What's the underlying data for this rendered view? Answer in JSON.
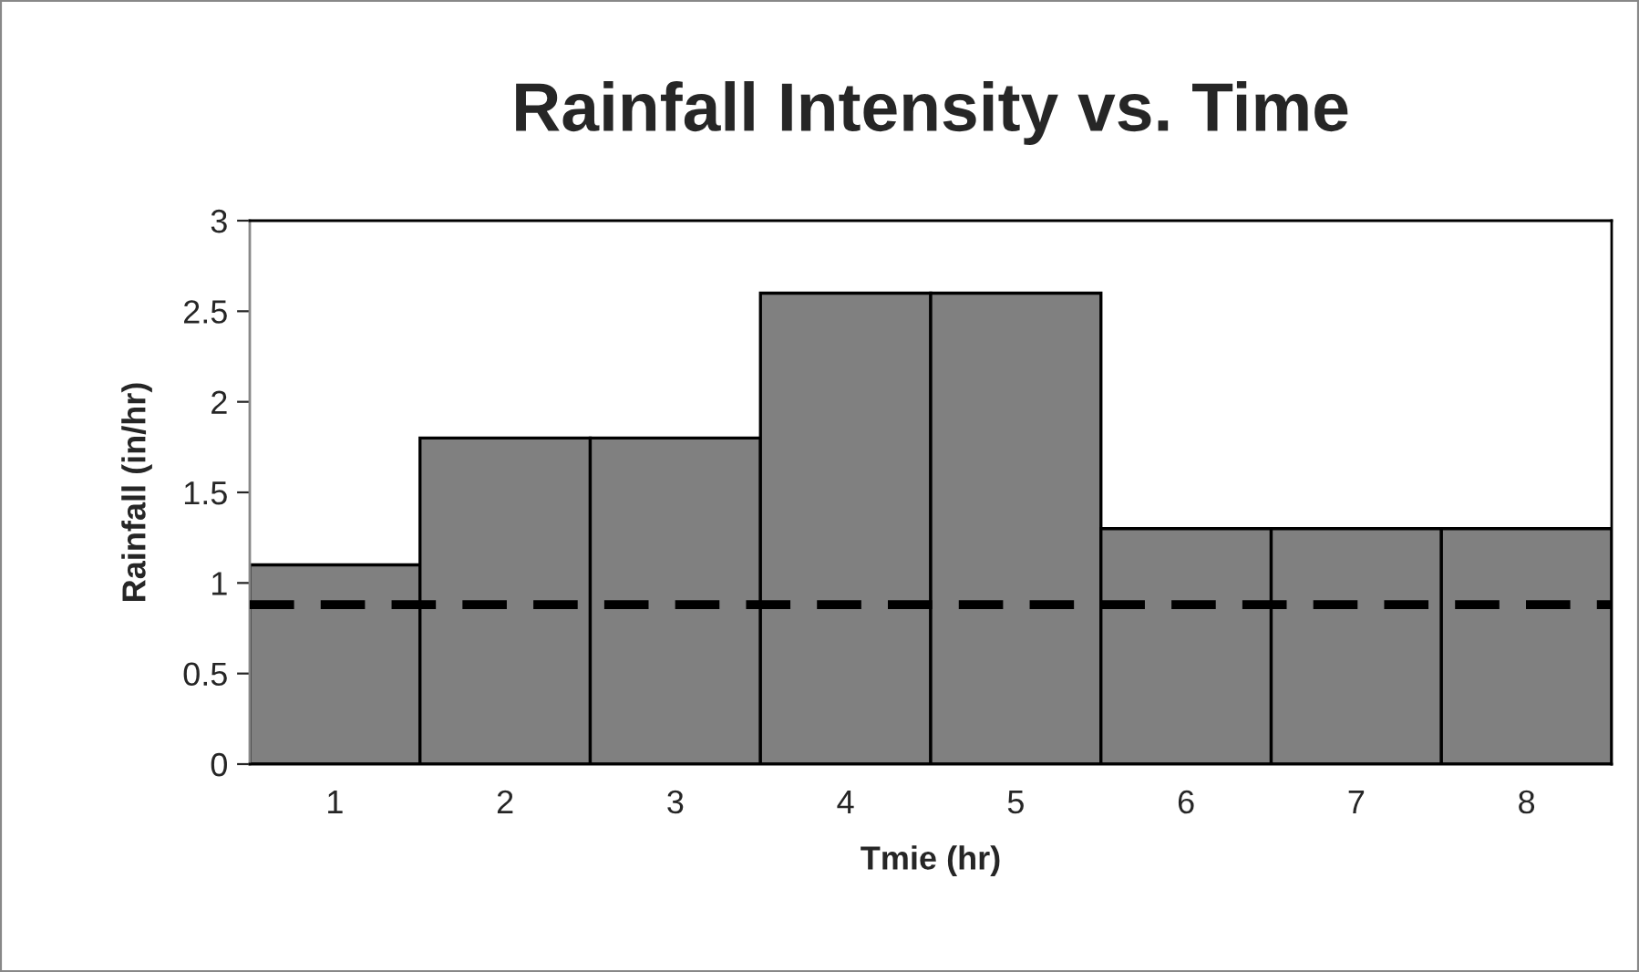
{
  "chart_data": {
    "type": "bar",
    "title": "Rainfall Intensity vs. Time",
    "xlabel": "Tmie (hr)",
    "ylabel": "Rainfall (in/hr)",
    "categories": [
      "1",
      "2",
      "3",
      "4",
      "5",
      "6",
      "7",
      "8"
    ],
    "values": [
      1.1,
      1.8,
      1.8,
      2.6,
      2.6,
      1.3,
      1.3,
      1.3
    ],
    "color": "#808080",
    "ylim": [
      0,
      3
    ],
    "yticks": [
      0,
      0.5,
      1,
      1.5,
      2,
      2.5,
      3
    ],
    "grid": false,
    "legend": false,
    "ref_lines": [
      {
        "axis": "y",
        "value": 0.88,
        "color": "#000000",
        "line_style": "dashed"
      }
    ]
  }
}
